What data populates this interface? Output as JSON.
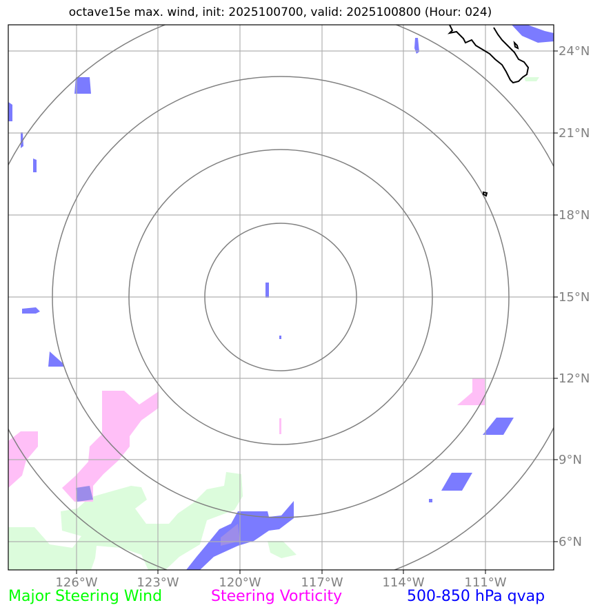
{
  "title": "octave15e max. wind, init: 2025100700, valid: 2025100800 (Hour: 024)",
  "longitude_labels": [
    "126°W",
    "123°W",
    "120°W",
    "117°W",
    "114°W",
    "111°W"
  ],
  "latitude_labels": [
    "24°N",
    "21°N",
    "18°N",
    "15°N",
    "12°N",
    "9°N",
    "6°N"
  ],
  "legend": [
    {
      "label": "Major Steering Wind",
      "color": "#00ff00"
    },
    {
      "label": "Steering Vorticity",
      "color": "#ff00ff"
    },
    {
      "label": "500-850 hPa qvap",
      "color": "#0000ff"
    }
  ],
  "colors": {
    "wind_fill": "#dcfcdc",
    "vorticity_fill": "#ffbff7",
    "qvap_fill": "#7b7bff",
    "range_ring": "#808080",
    "gridline": "#b0b0b0",
    "coastline": "#000000"
  },
  "map": {
    "lon_range": [
      -128.5,
      -108.5
    ],
    "lat_range": [
      5.0,
      25.0
    ],
    "center": {
      "lon": -118.5,
      "lat": 15.0
    },
    "range_rings_degrees": [
      2.7,
      5.4,
      8.1,
      10.8
    ]
  }
}
